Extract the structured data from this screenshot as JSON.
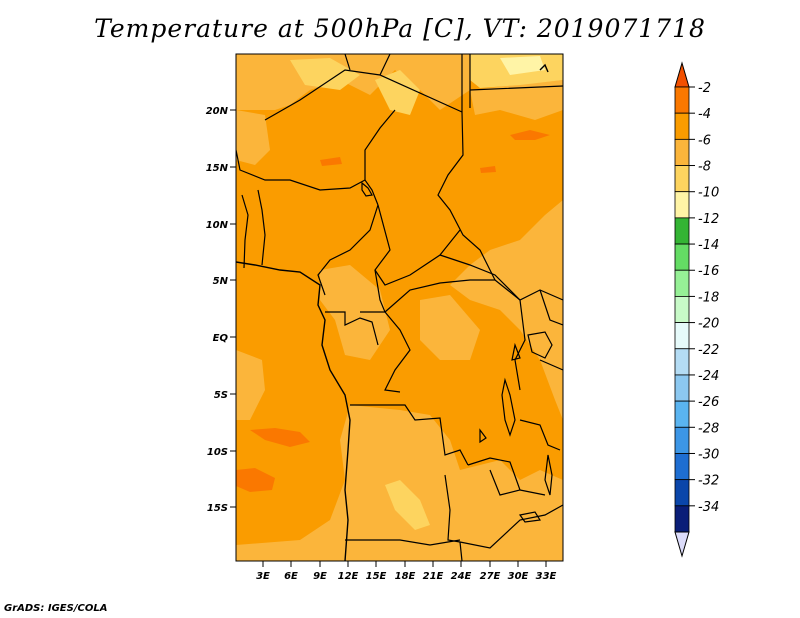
{
  "title": "Temperature at 500hPa [C], VT: 2019071718",
  "credit": "GrADS: IGES/COLA",
  "map": {
    "lat_labels": [
      "20N",
      "15N",
      "10N",
      "5N",
      "EQ",
      "5S",
      "10S",
      "15S"
    ],
    "lon_labels": [
      "3E",
      "6E",
      "9E",
      "12E",
      "15E",
      "18E",
      "21E",
      "24E",
      "27E",
      "30E",
      "33E"
    ]
  },
  "colorbar": {
    "labels": [
      "-2",
      "-4",
      "-6",
      "-8",
      "-10",
      "-12",
      "-14",
      "-16",
      "-18",
      "-20",
      "-22",
      "-24",
      "-26",
      "-28",
      "-30",
      "-32",
      "-34"
    ],
    "colors": [
      "#f25000",
      "#fa7800",
      "#fa9c00",
      "#fbb53b",
      "#fdd45f",
      "#fff4a6",
      "#34b434",
      "#64dc64",
      "#96f096",
      "#c8fac8",
      "#e6fafa",
      "#b4dcf4",
      "#8cc8f0",
      "#5ab4f0",
      "#3c96e6",
      "#1e6ed2",
      "#0a46aa",
      "#0a1e78",
      "#dcdcfa"
    ]
  },
  "colors": {
    "c2": "#f25000",
    "c4": "#fa7800",
    "c6": "#fa9c00",
    "c8": "#fbb53b",
    "c10": "#fdd45f",
    "c12": "#fff4a6"
  }
}
